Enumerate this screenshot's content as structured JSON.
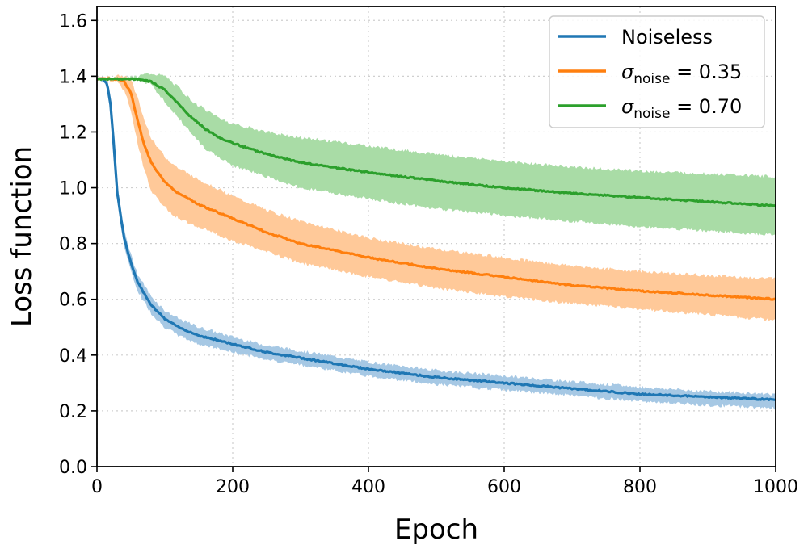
{
  "chart_data": {
    "type": "line",
    "title": "",
    "xlabel": "Epoch",
    "ylabel": "Loss function",
    "xlim": [
      0,
      1000
    ],
    "ylim": [
      0,
      1.65
    ],
    "xticks": [
      0,
      200,
      400,
      600,
      800,
      1000
    ],
    "xtick_labels": [
      "0",
      "200",
      "400",
      "600",
      "800",
      "1000"
    ],
    "yticks": [
      0.0,
      0.2,
      0.4,
      0.6,
      0.8,
      1.0,
      1.2,
      1.4,
      1.6
    ],
    "ytick_labels": [
      "0.0",
      "0.2",
      "0.4",
      "0.6",
      "0.8",
      "1.0",
      "1.2",
      "1.4",
      "1.6"
    ],
    "grid": true,
    "legend_position": "top-right",
    "series": [
      {
        "name": "Noiseless",
        "legend_main": "Noiseless",
        "legend_sub": "",
        "legend_rest": "",
        "color": "#1f77b4",
        "band_color": "#a6c8e4",
        "x": [
          0,
          10,
          15,
          20,
          25,
          30,
          40,
          50,
          60,
          80,
          100,
          120,
          150,
          200,
          250,
          300,
          400,
          500,
          600,
          700,
          800,
          900,
          1000
        ],
        "y": [
          1.39,
          1.39,
          1.37,
          1.3,
          1.15,
          0.98,
          0.82,
          0.73,
          0.66,
          0.58,
          0.53,
          0.5,
          0.47,
          0.44,
          0.41,
          0.39,
          0.35,
          0.32,
          0.3,
          0.28,
          0.26,
          0.25,
          0.24
        ],
        "lower": [
          1.39,
          1.38,
          1.36,
          1.28,
          1.12,
          0.95,
          0.79,
          0.7,
          0.63,
          0.55,
          0.5,
          0.47,
          0.44,
          0.41,
          0.385,
          0.365,
          0.325,
          0.295,
          0.275,
          0.255,
          0.235,
          0.22,
          0.21
        ],
        "upper": [
          1.39,
          1.4,
          1.38,
          1.32,
          1.18,
          1.01,
          0.85,
          0.76,
          0.69,
          0.61,
          0.56,
          0.53,
          0.5,
          0.465,
          0.435,
          0.415,
          0.375,
          0.345,
          0.325,
          0.305,
          0.285,
          0.27,
          0.26
        ]
      },
      {
        "name": "σnoise = 0.35",
        "legend_main": "σ",
        "legend_sub": "noise",
        "legend_rest": " = 0.35",
        "color": "#ff7f0e",
        "band_color": "#ffc999",
        "x": [
          0,
          30,
          40,
          50,
          60,
          70,
          80,
          100,
          120,
          150,
          200,
          250,
          300,
          400,
          500,
          600,
          700,
          800,
          900,
          1000
        ],
        "y": [
          1.39,
          1.39,
          1.38,
          1.34,
          1.24,
          1.15,
          1.09,
          1.02,
          0.98,
          0.94,
          0.89,
          0.84,
          0.8,
          0.75,
          0.71,
          0.68,
          0.65,
          0.63,
          0.615,
          0.6
        ],
        "lower": [
          1.39,
          1.38,
          1.35,
          1.28,
          1.16,
          1.06,
          0.99,
          0.93,
          0.89,
          0.86,
          0.81,
          0.77,
          0.73,
          0.68,
          0.64,
          0.61,
          0.585,
          0.565,
          0.545,
          0.525
        ],
        "upper": [
          1.39,
          1.4,
          1.4,
          1.39,
          1.32,
          1.24,
          1.18,
          1.11,
          1.07,
          1.03,
          0.97,
          0.92,
          0.88,
          0.82,
          0.78,
          0.75,
          0.72,
          0.7,
          0.685,
          0.675
        ]
      },
      {
        "name": "σnoise = 0.70",
        "legend_main": "σ",
        "legend_sub": "noise",
        "legend_rest": " = 0.70",
        "color": "#2ca02c",
        "band_color": "#a9dca6",
        "x": [
          0,
          60,
          80,
          100,
          120,
          140,
          160,
          180,
          200,
          250,
          300,
          400,
          500,
          600,
          700,
          800,
          900,
          1000
        ],
        "y": [
          1.39,
          1.39,
          1.38,
          1.35,
          1.3,
          1.25,
          1.21,
          1.18,
          1.16,
          1.12,
          1.09,
          1.055,
          1.025,
          1.0,
          0.98,
          0.965,
          0.95,
          0.935
        ],
        "lower": [
          1.39,
          1.39,
          1.37,
          1.31,
          1.25,
          1.19,
          1.14,
          1.11,
          1.08,
          1.04,
          1.0,
          0.96,
          0.925,
          0.9,
          0.88,
          0.86,
          0.845,
          0.83
        ],
        "upper": [
          1.39,
          1.4,
          1.41,
          1.4,
          1.36,
          1.31,
          1.28,
          1.25,
          1.23,
          1.2,
          1.18,
          1.15,
          1.12,
          1.095,
          1.075,
          1.06,
          1.05,
          1.04
        ]
      }
    ]
  }
}
